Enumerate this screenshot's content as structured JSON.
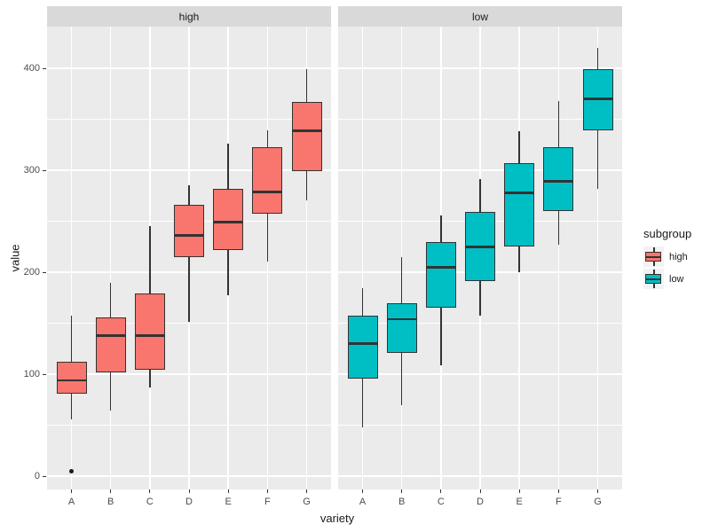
{
  "chart_data": {
    "type": "boxplot",
    "title": "",
    "xlabel": "variety",
    "ylabel": "value",
    "x_categories": [
      "A",
      "B",
      "C",
      "D",
      "E",
      "F",
      "G"
    ],
    "y_ticks": [
      0,
      100,
      200,
      300,
      400
    ],
    "y_minor_ticks": [
      50,
      150,
      250,
      350
    ],
    "ylim": [
      -13,
      441
    ],
    "grid": true,
    "facets": [
      {
        "label": "high",
        "fill_color": "#F8766D",
        "boxes": [
          {
            "category": "A",
            "whisker_low": 56,
            "q1": 81,
            "median": 94,
            "q3": 112,
            "whisker_high": 157,
            "outliers": [
              5
            ]
          },
          {
            "category": "B",
            "whisker_low": 64,
            "q1": 102,
            "median": 138,
            "q3": 156,
            "whisker_high": 190,
            "outliers": []
          },
          {
            "category": "C",
            "whisker_low": 87,
            "q1": 104,
            "median": 138,
            "q3": 179,
            "whisker_high": 245,
            "outliers": []
          },
          {
            "category": "D",
            "whisker_low": 151,
            "q1": 215,
            "median": 236,
            "q3": 266,
            "whisker_high": 285,
            "outliers": []
          },
          {
            "category": "E",
            "whisker_low": 177,
            "q1": 222,
            "median": 249,
            "q3": 282,
            "whisker_high": 326,
            "outliers": []
          },
          {
            "category": "F",
            "whisker_low": 210,
            "q1": 257,
            "median": 279,
            "q3": 323,
            "whisker_high": 339,
            "outliers": []
          },
          {
            "category": "G",
            "whisker_low": 270,
            "q1": 299,
            "median": 339,
            "q3": 367,
            "whisker_high": 399,
            "outliers": []
          }
        ]
      },
      {
        "label": "low",
        "fill_color": "#00BFC4",
        "boxes": [
          {
            "category": "A",
            "whisker_low": 48,
            "q1": 96,
            "median": 130,
            "q3": 157,
            "whisker_high": 184,
            "outliers": []
          },
          {
            "category": "B",
            "whisker_low": 70,
            "q1": 121,
            "median": 154,
            "q3": 170,
            "whisker_high": 215,
            "outliers": []
          },
          {
            "category": "C",
            "whisker_low": 109,
            "q1": 165,
            "median": 205,
            "q3": 230,
            "whisker_high": 256,
            "outliers": []
          },
          {
            "category": "D",
            "whisker_low": 157,
            "q1": 191,
            "median": 225,
            "q3": 259,
            "whisker_high": 291,
            "outliers": []
          },
          {
            "category": "E",
            "whisker_low": 200,
            "q1": 225,
            "median": 278,
            "q3": 307,
            "whisker_high": 338,
            "outliers": []
          },
          {
            "category": "F",
            "whisker_low": 227,
            "q1": 260,
            "median": 289,
            "q3": 323,
            "whisker_high": 368,
            "outliers": []
          },
          {
            "category": "G",
            "whisker_low": 282,
            "q1": 339,
            "median": 370,
            "q3": 399,
            "whisker_high": 420,
            "outliers": []
          }
        ]
      }
    ],
    "legend": {
      "title": "subgroup",
      "position": "right",
      "entries": [
        {
          "label": "high",
          "color": "#F8766D"
        },
        {
          "label": "low",
          "color": "#00BFC4"
        }
      ]
    }
  },
  "theme": {
    "panel_background": "#EBEBEB",
    "strip_background": "#D9D9D9",
    "grid_color": "#FFFFFF",
    "outline_color": "#333333",
    "outlier_color": "#1A1A1A",
    "tick_label_color": "#4D4D4D",
    "axis_title_color": "#1A1A1A",
    "strip_text_color": "#1A1A1A",
    "legend_key_background": "#F2F2F2",
    "legend_text_color": "#1A1A1A"
  }
}
